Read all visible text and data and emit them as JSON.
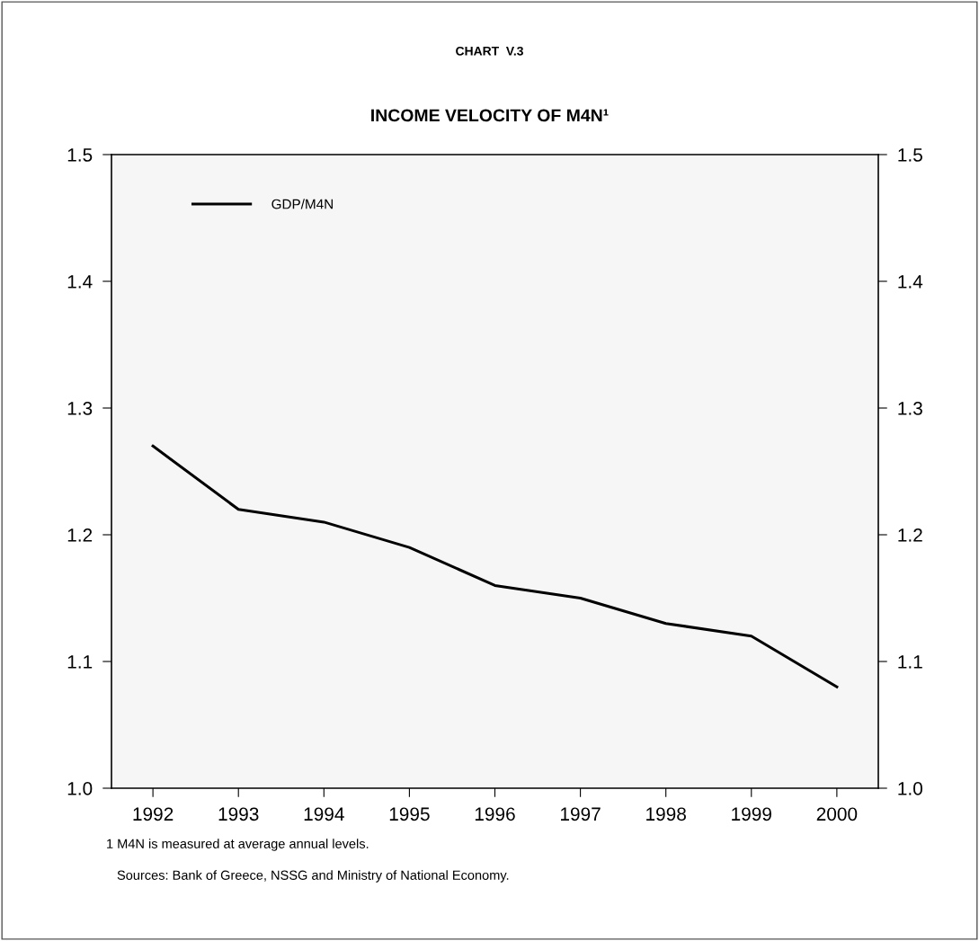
{
  "chart_data": {
    "type": "line",
    "title": "CHART  V.3",
    "subtitle": "INCOME VELOCITY OF M4N¹",
    "categories": [
      "1992",
      "1993",
      "1994",
      "1995",
      "1996",
      "1997",
      "1998",
      "1999",
      "2000"
    ],
    "series": [
      {
        "name": "GDP/M4N",
        "color": "#000000",
        "values": [
          1.27,
          1.22,
          1.21,
          1.19,
          1.16,
          1.15,
          1.13,
          1.12,
          1.08
        ]
      }
    ],
    "ylim": [
      1.0,
      1.5
    ],
    "yticks": [
      {
        "value": 1.0,
        "label": "1.0"
      },
      1.1,
      1.2,
      1.3,
      1.4,
      1.5
    ],
    "y2lim": [
      1.0,
      1.5
    ],
    "y2ticks": [
      {
        "value": 1.0,
        "label": "1.0"
      },
      1.1,
      1.2,
      1.3,
      1.4,
      1.5
    ],
    "grid": false,
    "legend": "top left",
    "marker": "none",
    "line_style": "solid",
    "annotations": [
      "1 M4N is measured at average annual levels.",
      "Sources: Bank of Greece, NSSG and Ministry of National Economy."
    ]
  }
}
